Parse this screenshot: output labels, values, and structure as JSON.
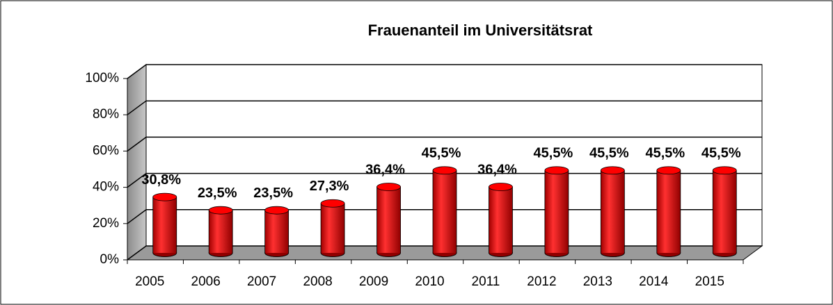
{
  "chart_data": {
    "type": "bar3d",
    "title": "Frauenanteil im Universitätsrat",
    "categories": [
      "2005",
      "2006",
      "2007",
      "2008",
      "2009",
      "2010",
      "2011",
      "2012",
      "2013",
      "2014",
      "2015"
    ],
    "values": [
      30.8,
      23.5,
      23.5,
      27.3,
      36.4,
      45.5,
      36.4,
      45.5,
      45.5,
      45.5,
      45.5
    ],
    "value_labels": [
      "30,8%",
      "23,5%",
      "23,5%",
      "27,3%",
      "36,4%",
      "45,5%",
      "36,4%",
      "45,5%",
      "45,5%",
      "45,5%",
      "45,5%"
    ],
    "color": "#ff0000",
    "ylim": [
      0,
      100
    ],
    "yticks": [
      {
        "value": 0,
        "label": "0%"
      },
      {
        "value": 20,
        "label": "20%"
      },
      {
        "value": 40,
        "label": "40%"
      },
      {
        "value": 60,
        "label": "60%"
      },
      {
        "value": 80,
        "label": "80%"
      },
      {
        "value": 100,
        "label": "100%"
      }
    ],
    "grid": true
  }
}
